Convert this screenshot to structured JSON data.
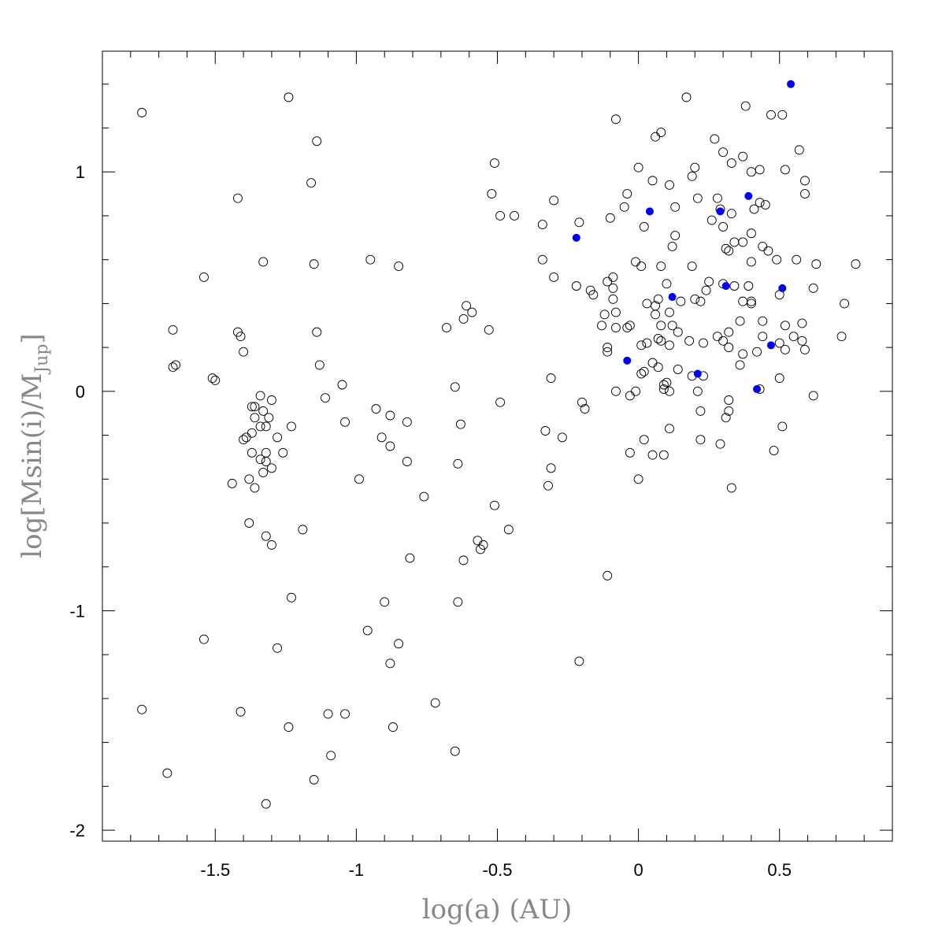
{
  "chart_data": {
    "type": "scatter",
    "xlabel": "log(a) (AU)",
    "ylabel": {
      "prefix": "log[Msin(i)/M",
      "subscript": "Jup",
      "suffix": "]"
    },
    "xlim": [
      -1.9,
      0.9
    ],
    "ylim": [
      -2.05,
      1.55
    ],
    "x_ticks": [
      -1.5,
      -1,
      -0.5,
      0,
      0.5
    ],
    "x_tick_labels": [
      "-1.5",
      "-1",
      "-0.5",
      "0",
      "0.5"
    ],
    "y_ticks": [
      -2,
      -1,
      0,
      1
    ],
    "y_tick_labels": [
      "-2",
      "-1",
      "0",
      "1"
    ],
    "grid": false,
    "colors": {
      "open_marker": "#000000",
      "filled_marker": "#0000ff"
    },
    "series": [
      {
        "marker": "open-circle",
        "points": [
          [
            -1.76,
            1.27
          ],
          [
            -1.24,
            1.34
          ],
          [
            -1.14,
            1.14
          ],
          [
            -1.16,
            0.95
          ],
          [
            -1.42,
            0.88
          ],
          [
            -1.54,
            0.52
          ],
          [
            -1.33,
            0.59
          ],
          [
            -1.15,
            0.58
          ],
          [
            -0.95,
            0.6
          ],
          [
            -0.85,
            0.57
          ],
          [
            -1.65,
            0.28
          ],
          [
            -1.42,
            0.27
          ],
          [
            -1.41,
            0.25
          ],
          [
            -1.4,
            0.18
          ],
          [
            -1.14,
            0.27
          ],
          [
            -1.65,
            0.11
          ],
          [
            -1.64,
            0.12
          ],
          [
            -1.51,
            0.06
          ],
          [
            -1.5,
            0.05
          ],
          [
            -1.13,
            0.12
          ],
          [
            -1.05,
            0.03
          ],
          [
            -1.11,
            -0.03
          ],
          [
            -1.34,
            -0.02
          ],
          [
            -1.3,
            -0.04
          ],
          [
            -1.37,
            -0.07
          ],
          [
            -1.36,
            -0.07
          ],
          [
            -1.33,
            -0.09
          ],
          [
            -1.36,
            -0.12
          ],
          [
            -1.31,
            -0.12
          ],
          [
            -1.34,
            -0.16
          ],
          [
            -1.32,
            -0.16
          ],
          [
            -1.23,
            -0.16
          ],
          [
            -1.04,
            -0.14
          ],
          [
            -1.4,
            -0.22
          ],
          [
            -1.39,
            -0.21
          ],
          [
            -1.37,
            -0.19
          ],
          [
            -1.28,
            -0.21
          ],
          [
            -1.37,
            -0.28
          ],
          [
            -1.32,
            -0.28
          ],
          [
            -1.26,
            -0.28
          ],
          [
            -1.34,
            -0.31
          ],
          [
            -1.32,
            -0.32
          ],
          [
            -1.3,
            -0.35
          ],
          [
            -1.33,
            -0.37
          ],
          [
            -1.38,
            -0.4
          ],
          [
            -1.44,
            -0.42
          ],
          [
            -1.36,
            -0.44
          ],
          [
            -1.38,
            -0.6
          ],
          [
            -1.32,
            -0.66
          ],
          [
            -1.3,
            -0.7
          ],
          [
            -1.19,
            -0.63
          ],
          [
            -1.23,
            -0.94
          ],
          [
            -1.54,
            -1.13
          ],
          [
            -1.28,
            -1.17
          ],
          [
            -1.76,
            -1.45
          ],
          [
            -1.41,
            -1.46
          ],
          [
            -1.24,
            -1.53
          ],
          [
            -1.1,
            -1.47
          ],
          [
            -1.04,
            -1.47
          ],
          [
            -1.67,
            -1.74
          ],
          [
            -1.09,
            -1.66
          ],
          [
            -1.15,
            -1.77
          ],
          [
            -1.32,
            -1.88
          ],
          [
            -0.93,
            -0.08
          ],
          [
            -0.88,
            -0.11
          ],
          [
            -0.91,
            -0.21
          ],
          [
            -0.88,
            -0.25
          ],
          [
            -0.82,
            -0.14
          ],
          [
            -0.82,
            -0.32
          ],
          [
            -0.99,
            -0.4
          ],
          [
            -0.76,
            -0.48
          ],
          [
            -0.81,
            -0.76
          ],
          [
            -0.9,
            -0.96
          ],
          [
            -0.96,
            -1.09
          ],
          [
            -0.85,
            -1.15
          ],
          [
            -0.88,
            -1.24
          ],
          [
            -0.72,
            -1.42
          ],
          [
            -0.87,
            -1.53
          ],
          [
            -0.65,
            -1.64
          ],
          [
            -0.51,
            1.04
          ],
          [
            -0.52,
            0.9
          ],
          [
            -0.49,
            0.8
          ],
          [
            -0.44,
            0.8
          ],
          [
            -0.3,
            0.87
          ],
          [
            -0.34,
            0.76
          ],
          [
            -0.21,
            0.77
          ],
          [
            -0.34,
            0.6
          ],
          [
            -0.3,
            0.52
          ],
          [
            -0.61,
            0.39
          ],
          [
            -0.59,
            0.36
          ],
          [
            -0.62,
            0.33
          ],
          [
            -0.68,
            0.29
          ],
          [
            -0.53,
            0.28
          ],
          [
            -0.65,
            0.02
          ],
          [
            -0.31,
            0.06
          ],
          [
            -0.49,
            -0.05
          ],
          [
            -0.63,
            -0.15
          ],
          [
            -0.33,
            -0.18
          ],
          [
            -0.27,
            -0.21
          ],
          [
            -0.64,
            -0.33
          ],
          [
            -0.31,
            -0.35
          ],
          [
            -0.32,
            -0.43
          ],
          [
            -0.51,
            -0.52
          ],
          [
            -0.57,
            -0.68
          ],
          [
            -0.55,
            -0.7
          ],
          [
            -0.56,
            -0.72
          ],
          [
            -0.46,
            -0.63
          ],
          [
            -0.62,
            -0.77
          ],
          [
            -0.64,
            -0.96
          ],
          [
            -0.2,
            -0.05
          ],
          [
            -0.19,
            -0.08
          ],
          [
            -0.21,
            -1.23
          ],
          [
            -0.11,
            -0.84
          ],
          [
            -0.08,
            1.24
          ],
          [
            0.06,
            1.16
          ],
          [
            0.08,
            1.18
          ],
          [
            0.17,
            1.34
          ],
          [
            0.27,
            1.15
          ],
          [
            0.38,
            1.3
          ],
          [
            0.47,
            1.26
          ],
          [
            0.51,
            1.26
          ],
          [
            0.57,
            1.1
          ],
          [
            0.52,
            1.01
          ],
          [
            0.0,
            1.02
          ],
          [
            0.05,
            0.96
          ],
          [
            0.11,
            0.94
          ],
          [
            0.2,
            1.02
          ],
          [
            0.3,
            1.09
          ],
          [
            0.33,
            1.04
          ],
          [
            0.37,
            1.07
          ],
          [
            0.4,
            1.0
          ],
          [
            0.43,
            1.01
          ],
          [
            0.59,
            0.96
          ],
          [
            0.59,
            0.9
          ],
          [
            -0.04,
            0.9
          ],
          [
            -0.05,
            0.84
          ],
          [
            -0.1,
            0.79
          ],
          [
            0.02,
            0.75
          ],
          [
            0.13,
            0.84
          ],
          [
            0.19,
            0.98
          ],
          [
            0.21,
            0.88
          ],
          [
            0.26,
            0.78
          ],
          [
            0.28,
            0.88
          ],
          [
            0.29,
            0.83
          ],
          [
            0.3,
            0.75
          ],
          [
            0.33,
            0.81
          ],
          [
            0.41,
            0.83
          ],
          [
            0.43,
            0.86
          ],
          [
            0.45,
            0.85
          ],
          [
            0.4,
            0.72
          ],
          [
            0.34,
            0.68
          ],
          [
            0.37,
            0.68
          ],
          [
            0.13,
            0.71
          ],
          [
            0.12,
            0.66
          ],
          [
            0.31,
            0.65
          ],
          [
            0.32,
            0.64
          ],
          [
            0.44,
            0.66
          ],
          [
            0.46,
            0.64
          ],
          [
            0.49,
            0.6
          ],
          [
            0.56,
            0.6
          ],
          [
            0.63,
            0.58
          ],
          [
            0.77,
            0.58
          ],
          [
            0.08,
            0.57
          ],
          [
            0.19,
            0.57
          ],
          [
            0.4,
            0.59
          ],
          [
            -0.01,
            0.59
          ],
          [
            0.01,
            0.57
          ],
          [
            -0.22,
            0.48
          ],
          [
            -0.11,
            0.5
          ],
          [
            -0.09,
            0.52
          ],
          [
            -0.17,
            0.46
          ],
          [
            -0.16,
            0.44
          ],
          [
            -0.09,
            0.47
          ],
          [
            -0.09,
            0.42
          ],
          [
            0.1,
            0.49
          ],
          [
            0.07,
            0.42
          ],
          [
            0.06,
            0.39
          ],
          [
            0.03,
            0.4
          ],
          [
            0.15,
            0.41
          ],
          [
            0.2,
            0.42
          ],
          [
            0.22,
            0.41
          ],
          [
            0.24,
            0.46
          ],
          [
            0.25,
            0.5
          ],
          [
            0.3,
            0.49
          ],
          [
            0.34,
            0.48
          ],
          [
            0.37,
            0.41
          ],
          [
            0.39,
            0.48
          ],
          [
            0.4,
            0.4
          ],
          [
            0.4,
            0.41
          ],
          [
            0.5,
            0.44
          ],
          [
            0.62,
            0.47
          ],
          [
            0.73,
            0.4
          ],
          [
            -0.13,
            0.3
          ],
          [
            -0.12,
            0.35
          ],
          [
            -0.08,
            0.36
          ],
          [
            -0.03,
            0.3
          ],
          [
            -0.04,
            0.29
          ],
          [
            -0.08,
            0.29
          ],
          [
            0.06,
            0.35
          ],
          [
            0.08,
            0.3
          ],
          [
            0.11,
            0.36
          ],
          [
            0.12,
            0.3
          ],
          [
            0.14,
            0.27
          ],
          [
            0.32,
            0.27
          ],
          [
            0.36,
            0.32
          ],
          [
            0.44,
            0.32
          ],
          [
            0.52,
            0.3
          ],
          [
            0.58,
            0.31
          ],
          [
            0.72,
            0.25
          ],
          [
            -0.11,
            0.2
          ],
          [
            -0.11,
            0.18
          ],
          [
            0.01,
            0.21
          ],
          [
            0.03,
            0.22
          ],
          [
            0.07,
            0.24
          ],
          [
            0.08,
            0.23
          ],
          [
            0.11,
            0.21
          ],
          [
            0.18,
            0.23
          ],
          [
            0.23,
            0.22
          ],
          [
            0.28,
            0.25
          ],
          [
            0.3,
            0.23
          ],
          [
            0.32,
            0.2
          ],
          [
            0.37,
            0.17
          ],
          [
            0.42,
            0.18
          ],
          [
            0.44,
            0.25
          ],
          [
            0.5,
            0.22
          ],
          [
            0.52,
            0.19
          ],
          [
            0.55,
            0.25
          ],
          [
            0.58,
            0.23
          ],
          [
            0.59,
            0.19
          ],
          [
            0.36,
            0.12
          ],
          [
            0.05,
            0.13
          ],
          [
            0.07,
            0.11
          ],
          [
            0.02,
            0.09
          ],
          [
            0.01,
            0.08
          ],
          [
            0.1,
            0.04
          ],
          [
            0.09,
            0.03
          ],
          [
            0.14,
            0.1
          ],
          [
            0.19,
            0.07
          ],
          [
            0.23,
            0.07
          ],
          [
            0.5,
            0.06
          ],
          [
            -0.08,
            0.0
          ],
          [
            -0.01,
            0.0
          ],
          [
            -0.03,
            -0.02
          ],
          [
            0.09,
            0.01
          ],
          [
            0.11,
            0.0
          ],
          [
            0.21,
            0.0
          ],
          [
            0.32,
            -0.04
          ],
          [
            0.43,
            0.01
          ],
          [
            0.62,
            -0.02
          ],
          [
            0.22,
            -0.09
          ],
          [
            0.11,
            -0.17
          ],
          [
            0.32,
            -0.09
          ],
          [
            0.31,
            -0.12
          ],
          [
            0.51,
            -0.16
          ],
          [
            -0.03,
            -0.28
          ],
          [
            0.02,
            -0.22
          ],
          [
            0.05,
            -0.29
          ],
          [
            0.09,
            -0.29
          ],
          [
            0.22,
            -0.22
          ],
          [
            0.29,
            -0.24
          ],
          [
            0.48,
            -0.27
          ],
          [
            0.0,
            -0.4
          ],
          [
            0.33,
            -0.44
          ]
        ]
      },
      {
        "marker": "filled-circle",
        "points": [
          [
            0.54,
            1.4
          ],
          [
            0.39,
            0.89
          ],
          [
            0.29,
            0.82
          ],
          [
            0.04,
            0.82
          ],
          [
            -0.22,
            0.7
          ],
          [
            0.31,
            0.48
          ],
          [
            0.51,
            0.47
          ],
          [
            0.12,
            0.43
          ],
          [
            0.47,
            0.21
          ],
          [
            -0.04,
            0.14
          ],
          [
            0.21,
            0.08
          ],
          [
            0.42,
            0.01
          ]
        ]
      }
    ]
  }
}
